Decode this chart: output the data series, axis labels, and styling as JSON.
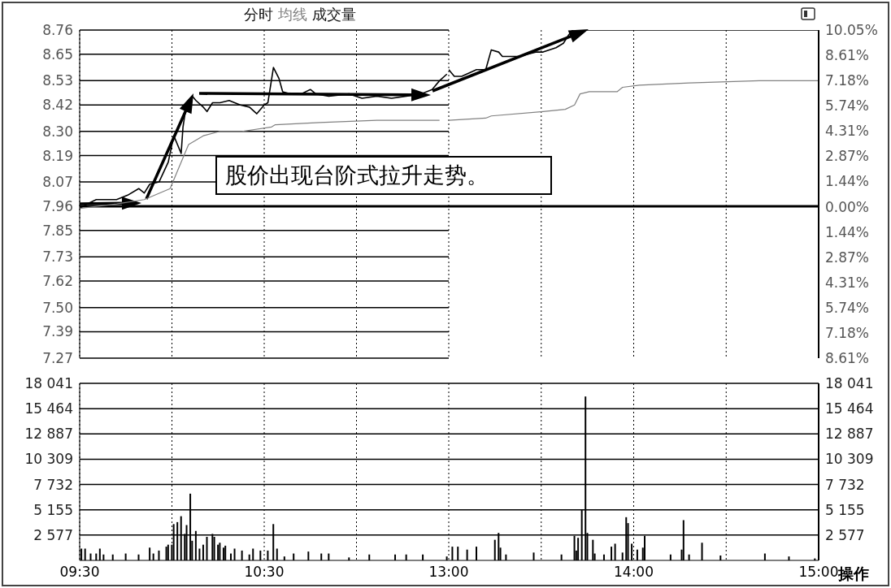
{
  "chart_data": [
    {
      "type": "line",
      "legend": "top",
      "grid": true,
      "tick_labels": "y",
      "xlim": [
        9.5,
        11.5
      ],
      "xticks": [
        {
          "value": 9.5,
          "label": null
        },
        {
          "value": 10,
          "label": null
        },
        {
          "value": 10.5,
          "label": null
        },
        {
          "value": 11,
          "label": null
        }
      ],
      "ylim": [
        7.27,
        8.76
      ],
      "yticks": [
        8.76,
        8.65,
        8.53,
        8.42,
        {
          "value": 8.3,
          "label": "8.30"
        },
        8.19,
        8.07,
        7.96,
        7.85,
        7.73,
        7.62,
        {
          "value": 7.5,
          "label": "7.50"
        },
        7.39,
        7.27
      ],
      "ref_lines": [
        {
          "axis": "y",
          "value": 7.96,
          "color": "#000000"
        }
      ],
      "annotations": [
        "股价出现台阶式拉升走势。"
      ],
      "series": [
        {
          "name": "分时",
          "color": "#000000",
          "x": [
            9.5,
            9.54,
            9.59,
            9.65,
            9.7,
            9.76,
            9.82,
            9.85,
            9.88,
            9.93,
            9.98,
            10.01,
            10.03,
            10.05,
            10.06,
            10.08,
            10.11,
            10.13,
            10.17,
            10.19,
            10.22,
            10.26,
            10.31,
            10.34,
            10.37,
            10.42,
            10.46,
            10.5,
            10.52,
            10.55,
            10.58,
            10.6,
            10.64,
            10.7,
            10.75,
            10.78,
            10.85,
            10.96,
            11.03,
            11.11,
            11.19,
            11.27,
            11.35,
            11.41,
            11.45,
            11.49
          ],
          "values": [
            7.95,
            7.97,
            7.99,
            7.99,
            7.99,
            8.01,
            8.04,
            8.02,
            8.06,
            8.07,
            8.16,
            8.28,
            8.24,
            8.2,
            8.32,
            8.43,
            8.46,
            8.44,
            8.41,
            8.39,
            8.43,
            8.43,
            8.44,
            8.43,
            8.42,
            8.41,
            8.38,
            8.42,
            8.43,
            8.59,
            8.54,
            8.48,
            8.47,
            8.47,
            8.49,
            8.47,
            8.46,
            8.47,
            8.45,
            8.46,
            8.45,
            8.46,
            8.47,
            8.49,
            8.53,
            8.56
          ]
        },
        {
          "name": "均线",
          "color": "#808080",
          "x": [
            9.5,
            9.7,
            9.85,
            9.99,
            10.03,
            10.09,
            10.17,
            10.26,
            10.38,
            10.54,
            10.56,
            10.8,
            11.11,
            11.45
          ],
          "values": [
            7.95,
            7.97,
            7.99,
            8.04,
            8.12,
            8.24,
            8.28,
            8.3,
            8.3,
            8.32,
            8.33,
            8.34,
            8.35,
            8.35
          ]
        }
      ]
    },
    {
      "type": "line",
      "grid": true,
      "tick_labels": false,
      "xlim": [
        13,
        15
      ],
      "xticks": [
        {
          "value": 13,
          "label": null
        },
        {
          "value": 13.5,
          "label": null
        },
        {
          "value": 14,
          "label": null
        },
        {
          "value": 14.5,
          "label": null
        },
        {
          "value": 15,
          "label": null
        }
      ],
      "ylim": [
        7.27,
        8.76
      ],
      "yticks": [
        8.76,
        8.65,
        8.53,
        8.42,
        8.3,
        8.19,
        8.07,
        7.96,
        7.85,
        7.73,
        7.62,
        7.5,
        7.39,
        7.27
      ],
      "y2lim": [
        -8.61,
        10.05
      ],
      "y2ticks": [
        {
          "value": 10.05,
          "label": "10.05%"
        },
        {
          "value": 8.61,
          "label": "8.61%"
        },
        {
          "value": 7.18,
          "label": "7.18%"
        },
        {
          "value": 5.74,
          "label": "5.74%"
        },
        {
          "value": 4.31,
          "label": "4.31%"
        },
        {
          "value": 2.87,
          "label": "2.87%"
        },
        {
          "value": 1.44,
          "label": "1.44%"
        },
        {
          "value": 0,
          "label": "0.00%"
        },
        {
          "value": -1.44,
          "label": "1.44%"
        },
        {
          "value": -2.87,
          "label": "2.87%"
        },
        {
          "value": -4.31,
          "label": "4.31%"
        },
        {
          "value": -5.74,
          "label": "5.74%"
        },
        {
          "value": -7.18,
          "label": "7.18%"
        },
        {
          "value": -8.61,
          "label": "8.61%"
        }
      ],
      "ref_lines": [
        {
          "axis": "y",
          "value": 7.96,
          "color": "#000000"
        }
      ],
      "series": [
        {
          "color": "#000000",
          "x": [
            13,
            13.03,
            13.07,
            13.15,
            13.2,
            13.23,
            13.27,
            13.29,
            13.35,
            13.38,
            13.47,
            13.51,
            13.58,
            13.62,
            13.65,
            13.67,
            14.33,
            15
          ],
          "values": [
            8.58,
            8.55,
            8.55,
            8.58,
            8.58,
            8.67,
            8.66,
            8.64,
            8.64,
            8.64,
            8.66,
            8.66,
            8.68,
            8.7,
            8.74,
            8.76,
            8.76,
            8.76
          ]
        },
        {
          "color": "#808080",
          "x": [
            13,
            13.2,
            13.23,
            13.51,
            13.63,
            13.68,
            13.71,
            13.76,
            13.91,
            13.94,
            14.03,
            14.3,
            14.68,
            15
          ],
          "values": [
            8.35,
            8.36,
            8.37,
            8.39,
            8.4,
            8.42,
            8.47,
            8.48,
            8.48,
            8.5,
            8.51,
            8.52,
            8.53,
            8.53
          ]
        }
      ]
    },
    {
      "type": "bar",
      "legend": "top",
      "grid": true,
      "xlim": [
        9.5,
        11.5
      ],
      "xticks": [
        {
          "value": 9.5,
          "label": "09:30"
        },
        {
          "value": 10,
          "label": null
        },
        {
          "value": 10.5,
          "label": "10:30"
        },
        {
          "value": 11,
          "label": null
        }
      ],
      "ylim": [
        0,
        18041
      ],
      "yticks": [
        {
          "value": 18041,
          "label": "18 041"
        },
        {
          "value": 15464,
          "label": "15 464"
        },
        {
          "value": 12887,
          "label": "12 887"
        },
        {
          "value": 10309,
          "label": "10 309"
        },
        {
          "value": 7732,
          "label": "7 732"
        },
        {
          "value": 5155,
          "label": "5 155"
        },
        {
          "value": 2577,
          "label": "2 577"
        }
      ],
      "x": [
        9.51,
        9.53,
        9.56,
        9.59,
        9.61,
        9.63,
        9.68,
        9.75,
        9.82,
        9.88,
        9.9,
        9.93,
        9.97,
        9.98,
        10.0,
        10.01,
        10.03,
        10.05,
        10.07,
        10.08,
        10.1,
        10.11,
        10.13,
        10.15,
        10.17,
        10.19,
        10.22,
        10.23,
        10.25,
        10.26,
        10.28,
        10.29,
        10.32,
        10.34,
        10.38,
        10.42,
        10.44,
        10.48,
        10.52,
        10.55,
        10.57,
        10.61,
        10.66,
        10.74,
        10.81,
        10.85,
        10.96,
        11.07,
        11.21,
        11.27,
        11.36,
        11.49
      ],
      "series": [
        {
          "name": "成交量",
          "color": "#000000",
          "values": [
            1200,
            1200,
            700,
            700,
            1200,
            600,
            600,
            700,
            600,
            1300,
            700,
            1000,
            1400,
            1600,
            1600,
            3700,
            3900,
            4500,
            2700,
            3600,
            6800,
            2000,
            3000,
            1200,
            1600,
            2400,
            2700,
            2400,
            1600,
            1800,
            1300,
            1500,
            700,
            1200,
            1000,
            600,
            1200,
            1000,
            1000,
            3700,
            1200,
            400,
            700,
            900,
            700,
            700,
            300,
            600,
            600,
            600,
            600,
            400
          ]
        }
      ]
    },
    {
      "type": "bar",
      "grid": true,
      "xlim": [
        13,
        15
      ],
      "xticks": [
        {
          "value": 13,
          "label": "13:00"
        },
        {
          "value": 13.5,
          "label": null
        },
        {
          "value": 14,
          "label": "14:00"
        },
        {
          "value": 14.5,
          "label": null
        },
        {
          "value": 15,
          "label": "15:00"
        }
      ],
      "y2lim": [
        0,
        18041
      ],
      "y2ticks": [
        {
          "value": 18041,
          "label": "18 041"
        },
        {
          "value": 15464,
          "label": "15 464"
        },
        {
          "value": 12887,
          "label": "12 887"
        },
        {
          "value": 10309,
          "label": "10 309"
        },
        {
          "value": 7732,
          "label": "7 732"
        },
        {
          "value": 5155,
          "label": "5 155"
        },
        {
          "value": 2577,
          "label": "2 577"
        }
      ],
      "annotations": [
        "操作"
      ],
      "x": [
        13.02,
        13.05,
        13.1,
        13.15,
        13.25,
        13.27,
        13.28,
        13.31,
        13.46,
        13.61,
        13.68,
        13.69,
        13.7,
        13.72,
        13.74,
        13.75,
        13.78,
        13.79,
        13.84,
        13.88,
        13.9,
        13.94,
        13.96,
        13.97,
        13.99,
        14.02,
        14.05,
        14.06,
        14.2,
        14.26,
        14.27,
        14.3,
        14.37,
        14.47,
        14.71,
        14.84,
        14.98
      ],
      "series": [
        {
          "color": "#000000",
          "axis": "y2",
          "values": [
            1400,
            1400,
            1100,
            1400,
            2100,
            2800,
            1300,
            600,
            800,
            600,
            2500,
            1000,
            2300,
            5200,
            16700,
            2800,
            2100,
            700,
            600,
            1400,
            1700,
            800,
            4400,
            3800,
            1700,
            1100,
            1300,
            2500,
            600,
            1100,
            4100,
            600,
            1800,
            500,
            700,
            400,
            200
          ]
        }
      ]
    }
  ]
}
